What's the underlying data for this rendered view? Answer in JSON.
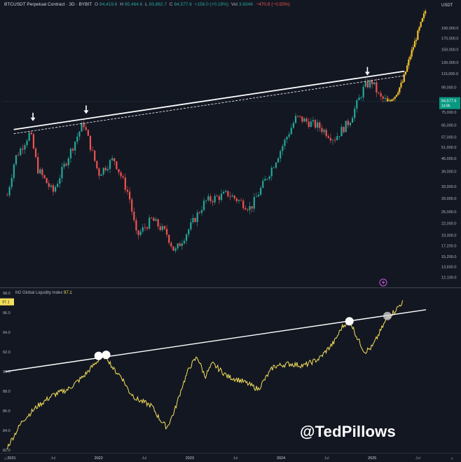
{
  "header": {
    "symbol": "BTCUSDT Perpetual Contract · 3D · BYBIT",
    "open_label": "O",
    "open": "84,419.6",
    "high_label": "H",
    "high": "85,464.6",
    "low_label": "L",
    "low": "83,882.7",
    "close_label": "C",
    "close": "84,577.6",
    "change": "+158.0 (+0.19%)",
    "vol_label": "Vol",
    "vol": "3.834K",
    "vol_change": "−470.9 (−0.55%)",
    "currency": "USDT"
  },
  "m2_panel": {
    "label": "M2 Global Liquidity Index",
    "value": "97.1"
  },
  "price_badge": {
    "price": "84,577.6",
    "countdown": "1d 8h"
  },
  "watermark": "@TedPillows",
  "colors": {
    "background": "#131722",
    "up": "#26a69a",
    "down": "#ef5350",
    "projection": "#f2c12e",
    "m2_line": "#f5e05a",
    "trendline": "#ffffff",
    "price_line": "#26a69a"
  },
  "chart_data": [
    {
      "type": "candlestick",
      "title": "BTCUSDT Perpetual Contract · 3D · BYBIT",
      "y_scale": "log",
      "ylim": [
        11000,
        240000
      ],
      "y_ticks": [
        "12,100.0",
        "13,600.0",
        "15,200.0",
        "17,200.0",
        "19,300.0",
        "22,000.0",
        "25,000.0",
        "29,000.0",
        "33,000.0",
        "39,000.0",
        "45,000.0",
        "51,000.0",
        "57,000.0",
        "65,000.0",
        "75,000.0",
        "84,577.6",
        "99,000.0",
        "115,000.0",
        "130,000.0",
        "150,000.0",
        "170,000.0",
        "190,000.0"
      ],
      "x_ticks": [
        "2021",
        "Jul",
        "2022",
        "Jul",
        "2023",
        "Jul",
        "2024",
        "Jul",
        "2025",
        "Jul"
      ],
      "historical_path": [
        {
          "t": "2021-01",
          "p": 30000
        },
        {
          "t": "2021-02",
          "p": 45000
        },
        {
          "t": "2021-04",
          "p": 60000
        },
        {
          "t": "2021-05",
          "p": 40000
        },
        {
          "t": "2021-07",
          "p": 31000
        },
        {
          "t": "2021-09",
          "p": 46000
        },
        {
          "t": "2021-11",
          "p": 67000
        },
        {
          "t": "2022-01",
          "p": 38000
        },
        {
          "t": "2022-03",
          "p": 45000
        },
        {
          "t": "2022-05",
          "p": 30000
        },
        {
          "t": "2022-06",
          "p": 19000
        },
        {
          "t": "2022-08",
          "p": 23000
        },
        {
          "t": "2022-10",
          "p": 19500
        },
        {
          "t": "2022-11",
          "p": 16000
        },
        {
          "t": "2023-01",
          "p": 21000
        },
        {
          "t": "2023-03",
          "p": 28000
        },
        {
          "t": "2023-06",
          "p": 30500
        },
        {
          "t": "2023-09",
          "p": 26000
        },
        {
          "t": "2023-12",
          "p": 42000
        },
        {
          "t": "2024-03",
          "p": 71000
        },
        {
          "t": "2024-06",
          "p": 64000
        },
        {
          "t": "2024-08",
          "p": 56000
        },
        {
          "t": "2024-10",
          "p": 68000
        },
        {
          "t": "2024-12",
          "p": 100000
        },
        {
          "t": "2025-01",
          "p": 105000
        },
        {
          "t": "2025-02",
          "p": 88000
        },
        {
          "t": "2025-03",
          "p": 84577.6
        }
      ],
      "projection_path": [
        {
          "t": "2025-03",
          "p": 84577.6
        },
        {
          "t": "2025-04",
          "p": 90000
        },
        {
          "t": "2025-05",
          "p": 105000
        },
        {
          "t": "2025-06",
          "p": 140000
        },
        {
          "t": "2025-07",
          "p": 180000
        },
        {
          "t": "2025-08",
          "p": 230000
        }
      ],
      "trendline": {
        "from": {
          "t": "2020-12",
          "p": 62000
        },
        "to": {
          "t": "2025-08",
          "p": 118000
        }
      },
      "touch_points": [
        "2021-04",
        "2021-11",
        "2024-12"
      ]
    },
    {
      "type": "line",
      "title": "M2 Global Liquidity Index",
      "ylim": [
        82.0,
        98.0
      ],
      "y_ticks": [
        "82.0",
        "84.0",
        "86.0",
        "88.0",
        "90.0",
        "92.0",
        "94.0",
        "96.0",
        "97.1",
        "98.0"
      ],
      "x_ticks": [
        "2021",
        "Jul",
        "2022",
        "Jul",
        "2023",
        "Jul",
        "2024",
        "Jul",
        "2025",
        "Jul"
      ],
      "series": [
        {
          "values": [
            {
              "t": "2021-01",
              "v": 82.3
            },
            {
              "t": "2021-03",
              "v": 85.0
            },
            {
              "t": "2021-05",
              "v": 86.5
            },
            {
              "t": "2021-07",
              "v": 87.6
            },
            {
              "t": "2021-09",
              "v": 88.2
            },
            {
              "t": "2021-11",
              "v": 89.5
            },
            {
              "t": "2022-01",
              "v": 91.2
            },
            {
              "t": "2022-02",
              "v": 91.6
            },
            {
              "t": "2022-03",
              "v": 90.2
            },
            {
              "t": "2022-04",
              "v": 89.5
            },
            {
              "t": "2022-05",
              "v": 88.0
            },
            {
              "t": "2022-06",
              "v": 87.2
            },
            {
              "t": "2022-08",
              "v": 86.5
            },
            {
              "t": "2022-09",
              "v": 85.2
            },
            {
              "t": "2022-10",
              "v": 84.3
            },
            {
              "t": "2022-11",
              "v": 86.0
            },
            {
              "t": "2022-12",
              "v": 88.5
            },
            {
              "t": "2023-01",
              "v": 90.5
            },
            {
              "t": "2023-02",
              "v": 91.5
            },
            {
              "t": "2023-03",
              "v": 89.5
            },
            {
              "t": "2023-04",
              "v": 90.8
            },
            {
              "t": "2023-06",
              "v": 89.5
            },
            {
              "t": "2023-08",
              "v": 89.0
            },
            {
              "t": "2023-10",
              "v": 88.2
            },
            {
              "t": "2023-12",
              "v": 90.5
            },
            {
              "t": "2024-02",
              "v": 90.8
            },
            {
              "t": "2024-04",
              "v": 90.6
            },
            {
              "t": "2024-06",
              "v": 91.3
            },
            {
              "t": "2024-08",
              "v": 93.0
            },
            {
              "t": "2024-09",
              "v": 94.5
            },
            {
              "t": "2024-10",
              "v": 95.3
            },
            {
              "t": "2024-11",
              "v": 93.5
            },
            {
              "t": "2024-12",
              "v": 92.0
            },
            {
              "t": "2025-01",
              "v": 92.5
            },
            {
              "t": "2025-02",
              "v": 94.0
            },
            {
              "t": "2025-03",
              "v": 95.5
            },
            {
              "t": "2025-04",
              "v": 96.2
            },
            {
              "t": "2025-05",
              "v": 97.1
            }
          ]
        }
      ],
      "trendline": {
        "from": {
          "t": "2020-10",
          "v": 90.0
        },
        "to": {
          "t": "2025-09",
          "v": 96.3
        }
      },
      "touch_points": [
        "2022-01",
        "2022-02",
        "2024-10",
        "2025-03"
      ]
    }
  ]
}
